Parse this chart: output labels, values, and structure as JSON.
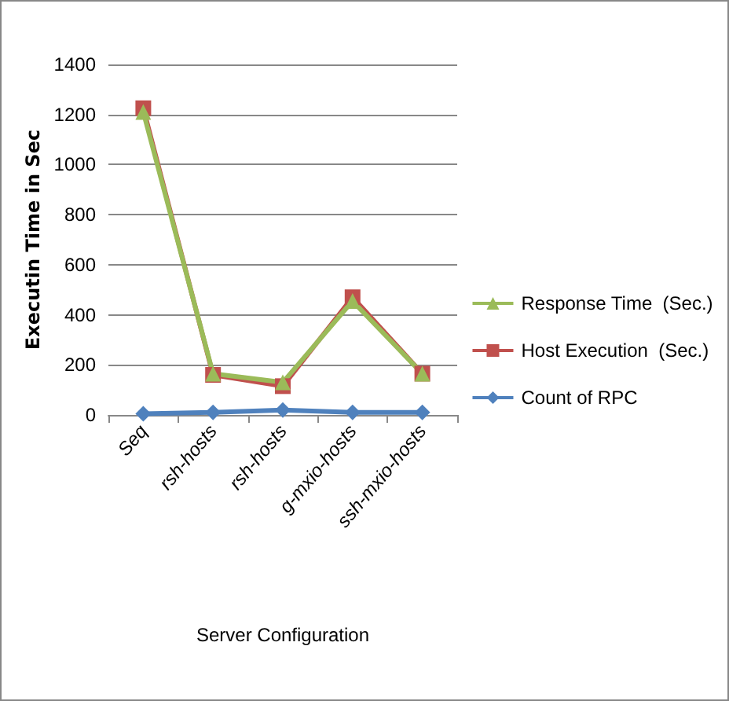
{
  "chart_data": {
    "type": "line",
    "xlabel": "Server Configuration",
    "ylabel": "Executin Time in Sec",
    "categories": [
      "Seq",
      "rsh-hosts",
      "rsh-hosts",
      "g-mxio-hosts",
      "ssh-mxio-hosts"
    ],
    "series": [
      {
        "name": "Count of RPC",
        "color": "#4f81bd",
        "marker": "diamond",
        "values": [
          5,
          10,
          20,
          10,
          10
        ]
      },
      {
        "name": "Host Execution  (Sec.)",
        "color": "#c0504d",
        "marker": "square",
        "values": [
          1225,
          160,
          115,
          470,
          165
        ]
      },
      {
        "name": "Response Time  (Sec.)",
        "color": "#9bbb59",
        "marker": "triangle",
        "values": [
          1210,
          165,
          130,
          455,
          165
        ]
      }
    ],
    "ylim": [
      0,
      1400
    ],
    "yticks": [
      0,
      200,
      400,
      600,
      800,
      1000,
      1200,
      1400
    ],
    "grid": "y",
    "legend": "right"
  }
}
